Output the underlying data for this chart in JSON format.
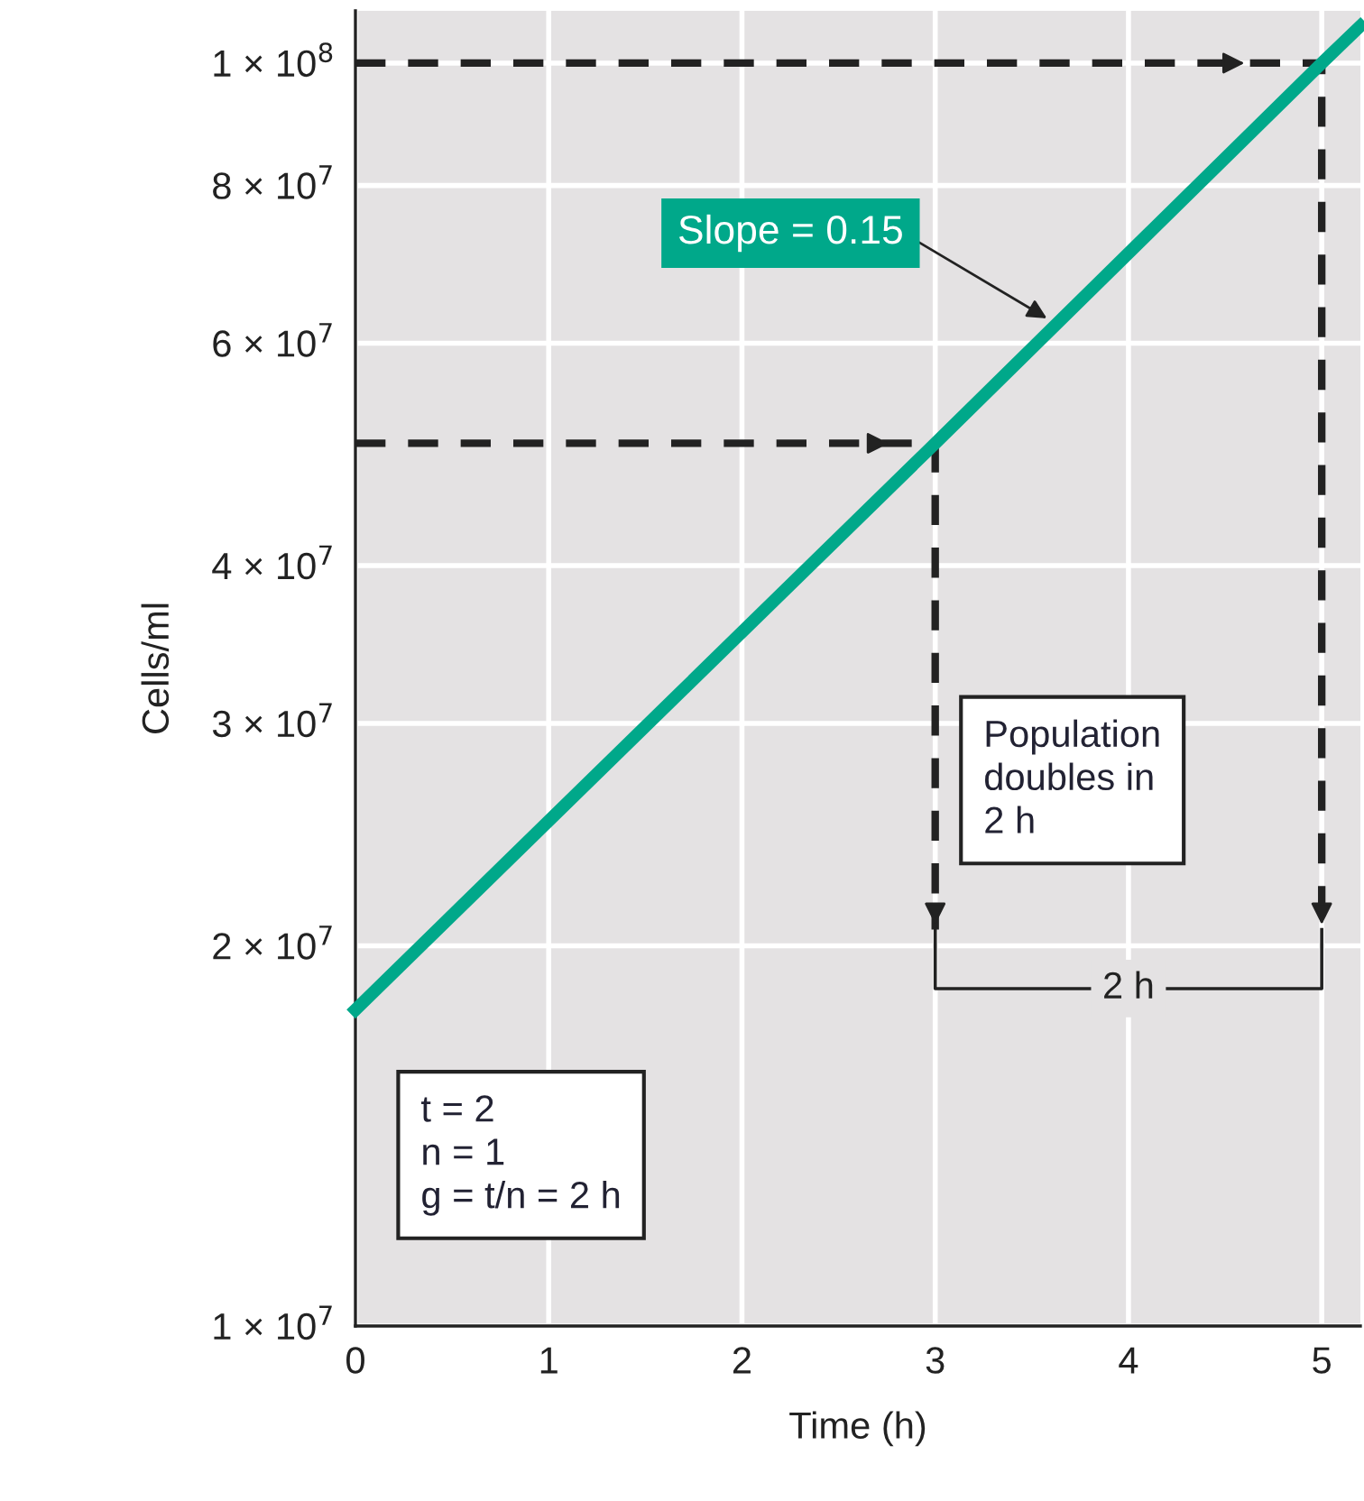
{
  "chart_data": {
    "type": "line",
    "xlabel": "Time (h)",
    "ylabel": "Cells/ml",
    "log": "y",
    "xlim": [
      0,
      5.2
    ],
    "xticks": [
      0,
      1,
      2,
      3,
      4,
      5
    ],
    "ylim": [
      10000000,
      110000000
    ],
    "yticks": [
      {
        "value": 10000000,
        "label": "1 × 10$^{7}$"
      },
      {
        "value": 20000000,
        "label": "2 × 10$^{7}$"
      },
      {
        "value": 30000000,
        "label": "3 × 10$^{7}$"
      },
      {
        "value": 40000000,
        "label": "4 × 10$^{7}$"
      },
      {
        "value": 60000000,
        "label": "6 × 10$^{7}$"
      },
      {
        "value": 80000000,
        "label": "8 × 10$^{7}$"
      },
      {
        "value": 100000000,
        "label": "1 × 10$^{8}$"
      }
    ],
    "grid": true,
    "marker": "none",
    "series": [
      {
        "color": "#00a88a",
        "line_style": "solid",
        "x": [
          0,
          3,
          5,
          5.2
        ],
        "values": [
          17800000,
          50000000,
          100000000,
          107000000
        ]
      },
      {
        "color": "#222222",
        "line_style": "dashed",
        "x": [
          0,
          3,
          3
        ],
        "values": [
          50000000,
          50000000,
          20600000
        ]
      },
      {
        "color": "#222222",
        "line_style": "dashed",
        "x": [
          0,
          5,
          5
        ],
        "values": [
          100000000,
          100000000,
          20600000
        ]
      },
      {
        "color": "#222222",
        "line_style": "solid",
        "x": [
          3,
          3,
          5,
          5
        ],
        "values": [
          20600000,
          18500000,
          18500000,
          20600000
        ]
      }
    ],
    "annotations": [
      {
        "text": "Slope = 0.15",
        "x": 3.6,
        "y": 62500000
      },
      "Population\ndoubles in\n2 h",
      {
        "text": "2 h",
        "x": 4,
        "y": 18500000
      },
      "t = 2\nn = 1\ng = t/n = 2 h"
    ]
  }
}
